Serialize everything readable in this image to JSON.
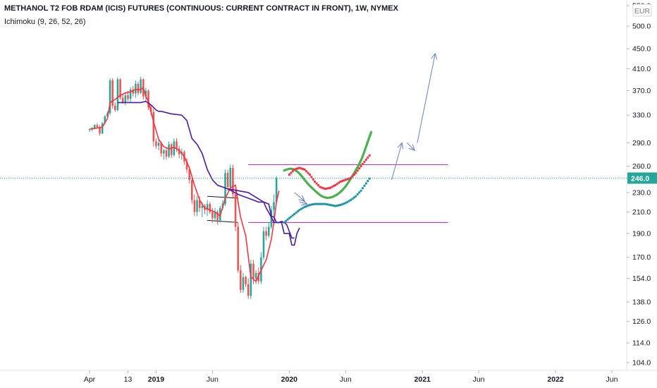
{
  "header": {
    "title": "METHANOL T2 FOB RDAM (ICIS) FUTURES (CONTINUOUS: CURRENT CONTRACT IN FRONT), 1W, NYMEX",
    "indicator": "Ichimoku (9, 26, 52, 26)"
  },
  "currency_button": "EUR",
  "colors": {
    "up": "#26a69a",
    "down": "#ef5350",
    "conversion_line": "#f23645",
    "base_line": "#4a1e9e",
    "price_line": "#26a69a",
    "hline": "#9c27b0",
    "green_curve": "#4caf50",
    "red_dots": "#f23645",
    "teal_dots": "#2196a6",
    "arrow": "#6b7fbf",
    "channel": "#131722"
  },
  "chart_data": {
    "type": "candlestick",
    "scale": "log",
    "ylim": [
      100,
      550
    ],
    "y_ticks": [
      "550.0",
      "500.0",
      "450.0",
      "410.0",
      "370.0",
      "330.0",
      "290.0",
      "260.0",
      "230.0",
      "210.0",
      "190.0",
      "170.0",
      "154.0",
      "138.0",
      "126.0",
      "114.0",
      "104.0"
    ],
    "y_tick_values": [
      550,
      500,
      450,
      410,
      370,
      330,
      290,
      260,
      230,
      210,
      190,
      170,
      154,
      138,
      126,
      114,
      104
    ],
    "x_labels": [
      "Apr",
      "13",
      "2019",
      "Jun",
      "2020",
      "Jun",
      "2021",
      "Jun",
      "2022",
      "Jun"
    ],
    "x_label_weeks": [
      0,
      15,
      26,
      48,
      78,
      100,
      130,
      152,
      182,
      204
    ],
    "x_label_bold": [
      false,
      false,
      true,
      false,
      true,
      false,
      true,
      false,
      true,
      false
    ],
    "week_domain": [
      -4,
      218
    ],
    "last_price": "246.0",
    "last_price_value": 246,
    "candles": [
      [
        0,
        308,
        310,
        305,
        309
      ],
      [
        1,
        309,
        312,
        306,
        311
      ],
      [
        2,
        311,
        316,
        309,
        315
      ],
      [
        3,
        315,
        318,
        310,
        312
      ],
      [
        4,
        312,
        315,
        300,
        303
      ],
      [
        5,
        303,
        320,
        302,
        318
      ],
      [
        6,
        318,
        330,
        316,
        328
      ],
      [
        7,
        328,
        336,
        325,
        333
      ],
      [
        8,
        333,
        392,
        330,
        388
      ],
      [
        9,
        388,
        392,
        340,
        345
      ],
      [
        10,
        345,
        350,
        335,
        338
      ],
      [
        11,
        338,
        394,
        336,
        390
      ],
      [
        12,
        390,
        392,
        355,
        358
      ],
      [
        13,
        358,
        365,
        348,
        350
      ],
      [
        14,
        350,
        368,
        346,
        362
      ],
      [
        15,
        362,
        370,
        352,
        356
      ],
      [
        16,
        356,
        376,
        350,
        372
      ],
      [
        17,
        372,
        378,
        360,
        365
      ],
      [
        18,
        365,
        388,
        358,
        382
      ],
      [
        19,
        382,
        386,
        362,
        366
      ],
      [
        20,
        366,
        395,
        364,
        390
      ],
      [
        21,
        390,
        392,
        355,
        360
      ],
      [
        22,
        360,
        375,
        352,
        370
      ],
      [
        23,
        370,
        372,
        338,
        342
      ],
      [
        24,
        342,
        346,
        330,
        335
      ],
      [
        25,
        335,
        340,
        285,
        292
      ],
      [
        26,
        292,
        296,
        282,
        286
      ],
      [
        27,
        286,
        294,
        280,
        290
      ],
      [
        28,
        290,
        292,
        272,
        276
      ],
      [
        29,
        276,
        282,
        268,
        280
      ],
      [
        30,
        280,
        284,
        268,
        272
      ],
      [
        31,
        272,
        292,
        270,
        288
      ],
      [
        32,
        288,
        290,
        270,
        274
      ],
      [
        33,
        274,
        296,
        272,
        292
      ],
      [
        34,
        292,
        296,
        278,
        282
      ],
      [
        35,
        282,
        286,
        270,
        275
      ],
      [
        36,
        275,
        282,
        268,
        278
      ],
      [
        37,
        278,
        280,
        262,
        266
      ],
      [
        38,
        266,
        270,
        252,
        256
      ],
      [
        39,
        256,
        260,
        240,
        244
      ],
      [
        40,
        244,
        248,
        218,
        222
      ],
      [
        41,
        222,
        228,
        206,
        210
      ],
      [
        42,
        210,
        226,
        206,
        222
      ],
      [
        43,
        222,
        226,
        210,
        214
      ],
      [
        44,
        214,
        220,
        205,
        216
      ],
      [
        45,
        216,
        218,
        208,
        212
      ],
      [
        46,
        212,
        222,
        206,
        218
      ],
      [
        47,
        218,
        220,
        208,
        210
      ],
      [
        48,
        210,
        214,
        200,
        204
      ],
      [
        49,
        204,
        214,
        202,
        210
      ],
      [
        50,
        210,
        212,
        198,
        202
      ],
      [
        51,
        202,
        216,
        200,
        214
      ],
      [
        52,
        214,
        222,
        212,
        218
      ],
      [
        53,
        218,
        256,
        216,
        252
      ],
      [
        54,
        252,
        256,
        232,
        236
      ],
      [
        55,
        236,
        262,
        234,
        258
      ],
      [
        56,
        258,
        262,
        225,
        228
      ],
      [
        57,
        228,
        232,
        192,
        196
      ],
      [
        58,
        196,
        200,
        158,
        160
      ],
      [
        59,
        160,
        164,
        144,
        146
      ],
      [
        60,
        146,
        158,
        144,
        155
      ],
      [
        61,
        155,
        156,
        148,
        150
      ],
      [
        62,
        150,
        154,
        140,
        142
      ],
      [
        63,
        142,
        168,
        140,
        165
      ],
      [
        64,
        165,
        168,
        150,
        154
      ],
      [
        65,
        154,
        160,
        150,
        158
      ],
      [
        66,
        158,
        162,
        150,
        152
      ],
      [
        67,
        152,
        174,
        150,
        170
      ],
      [
        68,
        170,
        196,
        168,
        192
      ],
      [
        69,
        192,
        196,
        184,
        188
      ],
      [
        70,
        188,
        200,
        186,
        196
      ],
      [
        71,
        196,
        216,
        194,
        212
      ],
      [
        72,
        212,
        228,
        206,
        220
      ],
      [
        73,
        220,
        248,
        218,
        246
      ]
    ],
    "series": [
      {
        "kind": "conversion",
        "points": [
          [
            0,
            309
          ],
          [
            5,
            312
          ],
          [
            7,
            325
          ],
          [
            8,
            350
          ],
          [
            10,
            355
          ],
          [
            12,
            362
          ],
          [
            14,
            366
          ],
          [
            16,
            368
          ],
          [
            18,
            372
          ],
          [
            20,
            372
          ],
          [
            21,
            375
          ],
          [
            22,
            360
          ],
          [
            23,
            352
          ],
          [
            25,
            320
          ],
          [
            27,
            295
          ],
          [
            29,
            285
          ],
          [
            31,
            282
          ],
          [
            33,
            284
          ],
          [
            35,
            280
          ],
          [
            37,
            272
          ],
          [
            39,
            258
          ],
          [
            41,
            238
          ],
          [
            43,
            222
          ],
          [
            45,
            214
          ],
          [
            47,
            212
          ],
          [
            49,
            210
          ],
          [
            51,
            206
          ],
          [
            53,
            224
          ],
          [
            55,
            235
          ],
          [
            57,
            238
          ],
          [
            58,
            220
          ],
          [
            59,
            205
          ],
          [
            61,
            188
          ],
          [
            63,
            155
          ],
          [
            65,
            152
          ],
          [
            67,
            160
          ],
          [
            69,
            168
          ],
          [
            71,
            185
          ],
          [
            72,
            200
          ],
          [
            73,
            220
          ],
          [
            74,
            232
          ]
        ]
      },
      {
        "kind": "base",
        "points": [
          [
            11,
            350
          ],
          [
            20,
            350
          ],
          [
            22,
            352
          ],
          [
            24,
            346
          ],
          [
            26,
            338
          ],
          [
            27,
            336
          ],
          [
            28,
            336
          ],
          [
            32,
            332
          ],
          [
            36,
            330
          ],
          [
            38,
            322
          ],
          [
            40,
            296
          ],
          [
            42,
            288
          ],
          [
            44,
            276
          ],
          [
            46,
            256
          ],
          [
            48,
            244
          ],
          [
            50,
            238
          ],
          [
            54,
            234
          ],
          [
            58,
            228
          ],
          [
            60,
            226
          ],
          [
            64,
            222
          ],
          [
            66,
            220
          ],
          [
            68,
            220
          ],
          [
            69,
            214
          ],
          [
            71,
            205
          ],
          [
            72,
            200
          ],
          [
            74,
            200
          ],
          [
            75,
            200
          ],
          [
            76,
            190
          ],
          [
            78,
            190
          ],
          [
            79,
            180
          ],
          [
            80,
            180
          ],
          [
            81,
            190
          ],
          [
            82,
            195
          ]
        ]
      },
      {
        "kind": "base",
        "points": [
          [
            54,
            234
          ],
          [
            62,
            230
          ],
          [
            68,
            220
          ],
          [
            70,
            218
          ],
          [
            71,
            206
          ],
          [
            72,
            205
          ],
          [
            73,
            200
          ],
          [
            74,
            200
          ],
          [
            75,
            201
          ],
          [
            76,
            200
          ],
          [
            77,
            198
          ],
          [
            78,
            192
          ],
          [
            79,
            186
          ],
          [
            80,
            186
          ]
        ]
      }
    ],
    "hlines": [
      {
        "x0": 62,
        "x1": 140,
        "y": 262
      },
      {
        "x0": 62,
        "x1": 140,
        "y": 200
      }
    ],
    "channel": {
      "top": [
        [
          46,
          226
        ],
        [
          58,
          224
        ]
      ],
      "bottom": [
        [
          46,
          202
        ],
        [
          58,
          200
        ]
      ]
    },
    "arrows": [
      [
        [
          80,
          230
        ],
        [
          84,
          221
        ]
      ],
      [
        [
          82,
          220
        ],
        [
          85,
          218
        ]
      ],
      [
        [
          118,
          244
        ],
        [
          122,
          290
        ]
      ],
      [
        [
          124,
          290
        ],
        [
          127,
          280
        ]
      ],
      [
        [
          128,
          290
        ],
        [
          135,
          440
        ]
      ]
    ],
    "green_curve": [
      [
        76,
        255
      ],
      [
        79,
        258
      ],
      [
        82,
        252
      ],
      [
        85,
        240
      ],
      [
        88,
        232
      ],
      [
        91,
        225
      ],
      [
        94,
        224
      ],
      [
        97,
        228
      ],
      [
        100,
        236
      ],
      [
        103,
        250
      ],
      [
        106,
        266
      ],
      [
        108,
        285
      ],
      [
        110,
        305
      ]
    ],
    "red_dots": [
      [
        78,
        250
      ],
      [
        80,
        256
      ],
      [
        82,
        258
      ],
      [
        84,
        256
      ],
      [
        86,
        250
      ],
      [
        88,
        242
      ],
      [
        90,
        236
      ],
      [
        92,
        234
      ],
      [
        94,
        235
      ],
      [
        96,
        238
      ],
      [
        98,
        242
      ],
      [
        100,
        244
      ],
      [
        102,
        246
      ],
      [
        104,
        252
      ],
      [
        106,
        260
      ],
      [
        108,
        268
      ],
      [
        110,
        276
      ]
    ],
    "teal_dots": [
      [
        76,
        200
      ],
      [
        78,
        204
      ],
      [
        80,
        208
      ],
      [
        82,
        212
      ],
      [
        84,
        215
      ],
      [
        86,
        217
      ],
      [
        88,
        218
      ],
      [
        90,
        218
      ],
      [
        92,
        218
      ],
      [
        94,
        217
      ],
      [
        96,
        216
      ],
      [
        98,
        217
      ],
      [
        100,
        219
      ],
      [
        102,
        222
      ],
      [
        104,
        226
      ],
      [
        106,
        232
      ],
      [
        108,
        240
      ],
      [
        110,
        248
      ]
    ]
  }
}
